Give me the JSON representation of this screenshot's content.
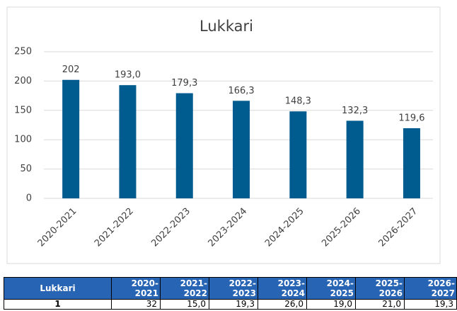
{
  "chart_data": {
    "type": "bar",
    "title": "Lukkari",
    "categories": [
      "2020-2021",
      "2021-2022",
      "2022-2023",
      "2023-2024",
      "2024-2025",
      "2025-2026",
      "2026-2027"
    ],
    "values": [
      202,
      193.0,
      179.3,
      166.3,
      148.3,
      132.3,
      119.6
    ],
    "value_labels": [
      "202",
      "193,0",
      "179,3",
      "166,3",
      "148,3",
      "132,3",
      "119,6"
    ],
    "color": "#005b8f",
    "ylim": [
      0,
      250
    ],
    "yticks": [
      0,
      50,
      100,
      150,
      200,
      250
    ],
    "grid": true
  },
  "table": {
    "header": [
      "Lukkari",
      "2020-2021",
      "2021-2022",
      "2022-2023",
      "2023-2024",
      "2024-2025",
      "2025-2026",
      "2026-2027"
    ],
    "rows": [
      [
        "1",
        "32",
        "15,0",
        "19,3",
        "26,0",
        "19,0",
        "21,0",
        "19,3"
      ]
    ]
  }
}
